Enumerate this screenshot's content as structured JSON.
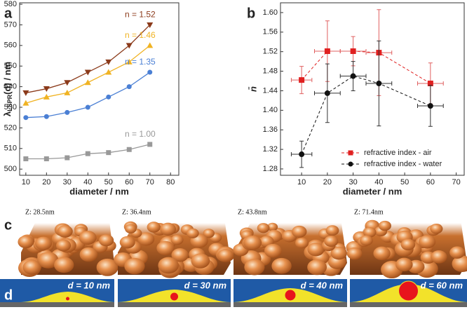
{
  "panels": {
    "a": "a",
    "b": "b",
    "c": "c",
    "d": "d"
  },
  "chart_data": [
    {
      "type": "line",
      "x": [
        10,
        20,
        30,
        40,
        50,
        60,
        70
      ],
      "xlim": [
        7,
        84
      ],
      "xticks": [
        10,
        20,
        30,
        40,
        50,
        60,
        70,
        80
      ],
      "ylim": [
        497,
        580.7
      ],
      "yticks": [
        500,
        510,
        520,
        530,
        540,
        550,
        560,
        570,
        580
      ],
      "xlabel": "diameter / nm",
      "ylabel_parts": [
        "λ",
        "LSPR",
        "(d) / nm"
      ],
      "series": [
        {
          "name": "n = 1.52",
          "color": "#8b3a1a",
          "marker": "triangle-down",
          "values": [
            537,
            539,
            542,
            547,
            552,
            560,
            570
          ]
        },
        {
          "name": "n = 1.46",
          "color": "#f0b323",
          "marker": "triangle-up",
          "values": [
            532,
            535,
            537,
            542,
            547,
            552,
            560
          ]
        },
        {
          "name": "n = 1.35",
          "color": "#4a7fd4",
          "marker": "circle",
          "values": [
            525,
            525.5,
            527.5,
            530,
            535,
            540,
            547
          ]
        },
        {
          "name": "n = 1.00",
          "color": "#999999",
          "marker": "square",
          "values": [
            505,
            505,
            505.5,
            507.5,
            508,
            509.5,
            512
          ]
        }
      ]
    },
    {
      "type": "errorbar",
      "x": [
        10,
        20,
        30,
        40,
        60
      ],
      "xlim": [
        1.8,
        73.1
      ],
      "xticks": [
        10,
        20,
        30,
        40,
        50,
        60,
        70
      ],
      "ylim": [
        1.267,
        1.62
      ],
      "yticks": [
        {
          "value": 1.28,
          "label": "1.28"
        },
        {
          "value": 1.32,
          "label": "1.32"
        },
        {
          "value": 1.36,
          "label": "1.36"
        },
        {
          "value": 1.4,
          "label": "1.40"
        },
        {
          "value": 1.44,
          "label": "1.44"
        },
        {
          "value": 1.48,
          "label": "1.48"
        },
        {
          "value": 1.52,
          "label": "1.52"
        },
        {
          "value": 1.56,
          "label": "1.56"
        },
        {
          "value": 1.6,
          "label": "1.60"
        }
      ],
      "xlabel": "diameter / nm",
      "ylabel": "n̄",
      "legend": "bottom right",
      "series": [
        {
          "name": "refractive index - air",
          "color": "#e02020",
          "marker": "square",
          "values": [
            1.462,
            1.521,
            1.521,
            1.518,
            1.455
          ],
          "yerr": [
            0.028,
            0.062,
            0.03,
            0.088,
            0.042
          ],
          "xerr": [
            4,
            5,
            5,
            5,
            5
          ]
        },
        {
          "name": "refractive index - water",
          "color": "#111111",
          "marker": "circle",
          "values": [
            1.31,
            1.435,
            1.47,
            1.455,
            1.409
          ],
          "yerr": [
            0.027,
            0.06,
            0.03,
            0.087,
            0.042
          ],
          "xerr": [
            4,
            5,
            5,
            5,
            5
          ]
        }
      ]
    }
  ],
  "afm": [
    {
      "z": "Z: 28.5nm",
      "d": "d = 10 nm"
    },
    {
      "z": "Z: 36.4nm",
      "d": "d = 30 nm"
    },
    {
      "z": "Z: 43.8nm",
      "d": "d = 40 nm"
    },
    {
      "z": "Z: 71.4nm",
      "d": "d = 60 nm"
    }
  ]
}
